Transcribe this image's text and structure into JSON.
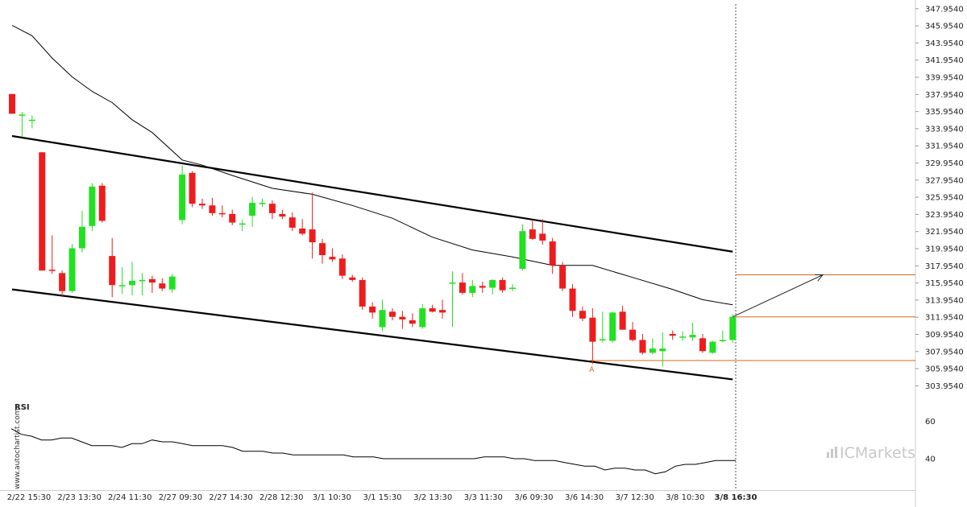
{
  "watermark": "www.autochartist.com",
  "brand_logo": "ICMarkets",
  "colors": {
    "bull": "#22e022",
    "bear": "#ee1c1c",
    "channel": "#000000",
    "moving_average": "#000000",
    "level": "#d2691e",
    "rsi": "#000000"
  },
  "chart_data": [
    {
      "type": "candlestick",
      "x_tick_labels": [
        "2/22 15:30",
        "2/23 13:30",
        "2/24 11:30",
        "2/27 09:30",
        "2/27 14:30",
        "2/28 12:30",
        "3/1 10:30",
        "3/1 15:30",
        "3/2 13:30",
        "3/3 11:30",
        "3/6 09:30",
        "3/6 14:30",
        "3/7 12:30",
        "3/8 10:30",
        "3/8 16:30"
      ],
      "y_tick_labels": [
        "303.9540",
        "305.9540",
        "307.9540",
        "309.9540",
        "311.9540",
        "313.9540",
        "315.9540",
        "317.9540",
        "319.9540",
        "321.9540",
        "323.9540",
        "325.9540",
        "327.9540",
        "329.9540",
        "331.9540",
        "333.9540",
        "335.9540",
        "337.9540",
        "339.9540",
        "341.9540",
        "343.9540",
        "345.9540",
        "347.9540"
      ],
      "ylim": [
        302.3,
        348.5
      ],
      "candles": [
        {
          "o": 338.0,
          "h": 338.0,
          "l": 335.7,
          "c": 335.7
        },
        {
          "o": 335.6,
          "h": 335.9,
          "l": 333.0,
          "c": 335.6
        },
        {
          "o": 335.0,
          "h": 335.5,
          "l": 334.0,
          "c": 335.0
        },
        {
          "o": 331.2,
          "h": 331.2,
          "l": 317.4,
          "c": 317.4
        },
        {
          "o": 317.5,
          "h": 321.5,
          "l": 317.0,
          "c": 317.4
        },
        {
          "o": 317.1,
          "h": 317.4,
          "l": 314.3,
          "c": 315.0
        },
        {
          "o": 315.0,
          "h": 320.5,
          "l": 314.8,
          "c": 320.0
        },
        {
          "o": 320.0,
          "h": 324.4,
          "l": 319.5,
          "c": 322.5
        },
        {
          "o": 322.6,
          "h": 327.6,
          "l": 322.0,
          "c": 327.2
        },
        {
          "o": 327.3,
          "h": 327.6,
          "l": 323.0,
          "c": 323.2
        },
        {
          "o": 319.1,
          "h": 321.2,
          "l": 314.3,
          "c": 315.7
        },
        {
          "o": 315.7,
          "h": 317.8,
          "l": 314.7,
          "c": 315.7
        },
        {
          "o": 315.7,
          "h": 318.4,
          "l": 314.5,
          "c": 316.2
        },
        {
          "o": 316.3,
          "h": 317.1,
          "l": 314.5,
          "c": 316.3
        },
        {
          "o": 316.4,
          "h": 316.8,
          "l": 314.8,
          "c": 316.0
        },
        {
          "o": 315.9,
          "h": 316.5,
          "l": 315.0,
          "c": 315.3
        },
        {
          "o": 315.2,
          "h": 317.0,
          "l": 314.8,
          "c": 316.7
        },
        {
          "o": 323.3,
          "h": 329.7,
          "l": 322.8,
          "c": 328.6
        },
        {
          "o": 328.8,
          "h": 329.0,
          "l": 324.8,
          "c": 325.2
        },
        {
          "o": 325.2,
          "h": 325.8,
          "l": 324.6,
          "c": 325.0
        },
        {
          "o": 325.0,
          "h": 325.9,
          "l": 323.8,
          "c": 324.1
        },
        {
          "o": 324.1,
          "h": 325.0,
          "l": 323.6,
          "c": 324.0
        },
        {
          "o": 324.0,
          "h": 324.5,
          "l": 322.7,
          "c": 323.0
        },
        {
          "o": 322.9,
          "h": 323.3,
          "l": 322.0,
          "c": 322.9
        },
        {
          "o": 323.8,
          "h": 326.0,
          "l": 322.5,
          "c": 325.3
        },
        {
          "o": 325.3,
          "h": 325.8,
          "l": 324.8,
          "c": 325.3
        },
        {
          "o": 325.2,
          "h": 325.6,
          "l": 323.4,
          "c": 324.1
        },
        {
          "o": 324.0,
          "h": 324.5,
          "l": 323.4,
          "c": 323.7
        },
        {
          "o": 323.6,
          "h": 324.2,
          "l": 322.0,
          "c": 322.4
        },
        {
          "o": 322.3,
          "h": 323.4,
          "l": 321.5,
          "c": 321.7
        },
        {
          "o": 322.2,
          "h": 326.5,
          "l": 318.8,
          "c": 320.7
        },
        {
          "o": 320.6,
          "h": 321.1,
          "l": 318.2,
          "c": 319.2
        },
        {
          "o": 319.0,
          "h": 320.0,
          "l": 318.4,
          "c": 318.7
        },
        {
          "o": 318.8,
          "h": 319.3,
          "l": 316.4,
          "c": 316.8
        },
        {
          "o": 316.6,
          "h": 316.9,
          "l": 316.1,
          "c": 316.3
        },
        {
          "o": 316.3,
          "h": 316.6,
          "l": 312.8,
          "c": 313.2
        },
        {
          "o": 313.2,
          "h": 313.7,
          "l": 311.8,
          "c": 312.5
        },
        {
          "o": 310.8,
          "h": 314.0,
          "l": 310.3,
          "c": 312.8
        },
        {
          "o": 312.6,
          "h": 313.0,
          "l": 311.6,
          "c": 312.0
        },
        {
          "o": 312.0,
          "h": 312.7,
          "l": 310.6,
          "c": 311.7
        },
        {
          "o": 311.6,
          "h": 312.4,
          "l": 310.8,
          "c": 311.2
        },
        {
          "o": 310.8,
          "h": 313.5,
          "l": 310.6,
          "c": 313.0
        },
        {
          "o": 313.0,
          "h": 313.4,
          "l": 312.5,
          "c": 312.6
        },
        {
          "o": 312.8,
          "h": 314.0,
          "l": 311.8,
          "c": 312.5
        },
        {
          "o": 315.9,
          "h": 317.3,
          "l": 310.8,
          "c": 316.0
        },
        {
          "o": 316.0,
          "h": 317.1,
          "l": 314.6,
          "c": 314.8
        },
        {
          "o": 314.8,
          "h": 316.3,
          "l": 314.3,
          "c": 315.6
        },
        {
          "o": 315.6,
          "h": 316.1,
          "l": 314.8,
          "c": 315.4
        },
        {
          "o": 315.4,
          "h": 316.4,
          "l": 314.6,
          "c": 316.3
        },
        {
          "o": 316.3,
          "h": 316.6,
          "l": 314.8,
          "c": 315.1
        },
        {
          "o": 315.4,
          "h": 315.8,
          "l": 315.0,
          "c": 315.4
        },
        {
          "o": 317.6,
          "h": 322.8,
          "l": 317.4,
          "c": 322.0
        },
        {
          "o": 322.2,
          "h": 323.3,
          "l": 321.0,
          "c": 321.1
        },
        {
          "o": 321.7,
          "h": 323.4,
          "l": 320.4,
          "c": 320.9
        },
        {
          "o": 320.8,
          "h": 321.2,
          "l": 317.0,
          "c": 318.0
        },
        {
          "o": 318.0,
          "h": 318.4,
          "l": 315.0,
          "c": 315.3
        },
        {
          "o": 315.3,
          "h": 315.8,
          "l": 312.0,
          "c": 312.7
        },
        {
          "o": 312.7,
          "h": 313.2,
          "l": 311.5,
          "c": 311.8
        },
        {
          "o": 311.9,
          "h": 313.0,
          "l": 306.5,
          "c": 309.1
        },
        {
          "o": 309.3,
          "h": 312.6,
          "l": 309.0,
          "c": 309.4
        },
        {
          "o": 309.2,
          "h": 312.6,
          "l": 309.0,
          "c": 312.5
        },
        {
          "o": 312.6,
          "h": 313.3,
          "l": 310.7,
          "c": 310.5
        },
        {
          "o": 310.5,
          "h": 311.4,
          "l": 309.1,
          "c": 309.3
        },
        {
          "o": 309.3,
          "h": 310.0,
          "l": 307.6,
          "c": 307.8
        },
        {
          "o": 307.8,
          "h": 309.5,
          "l": 307.6,
          "c": 308.3
        },
        {
          "o": 308.0,
          "h": 310.2,
          "l": 306.2,
          "c": 308.3
        },
        {
          "o": 310.0,
          "h": 310.4,
          "l": 309.3,
          "c": 309.8
        },
        {
          "o": 309.7,
          "h": 310.3,
          "l": 309.2,
          "c": 309.7
        },
        {
          "o": 309.6,
          "h": 311.3,
          "l": 309.2,
          "c": 309.9
        },
        {
          "o": 309.5,
          "h": 310.0,
          "l": 307.8,
          "c": 308.0
        },
        {
          "o": 307.8,
          "h": 309.2,
          "l": 307.7,
          "c": 309.1
        },
        {
          "o": 309.2,
          "h": 310.4,
          "l": 309.0,
          "c": 309.3
        },
        {
          "o": 309.3,
          "h": 312.3,
          "l": 309.0,
          "c": 312.0
        }
      ],
      "moving_average": [
        {
          "i": 0,
          "v": 346.0
        },
        {
          "i": 2,
          "v": 344.8
        },
        {
          "i": 4,
          "v": 342.2
        },
        {
          "i": 6,
          "v": 340.0
        },
        {
          "i": 8,
          "v": 338.3
        },
        {
          "i": 10,
          "v": 337.0
        },
        {
          "i": 12,
          "v": 335.0
        },
        {
          "i": 14,
          "v": 333.5
        },
        {
          "i": 17,
          "v": 330.3
        },
        {
          "i": 19,
          "v": 329.7
        },
        {
          "i": 22,
          "v": 328.5
        },
        {
          "i": 26,
          "v": 327.0
        },
        {
          "i": 30,
          "v": 326.3
        },
        {
          "i": 34,
          "v": 325.0
        },
        {
          "i": 38,
          "v": 323.5
        },
        {
          "i": 42,
          "v": 321.3
        },
        {
          "i": 46,
          "v": 319.8
        },
        {
          "i": 50,
          "v": 319.0
        },
        {
          "i": 54,
          "v": 318.0
        },
        {
          "i": 58,
          "v": 318.0
        },
        {
          "i": 62,
          "v": 316.6
        },
        {
          "i": 66,
          "v": 315.2
        },
        {
          "i": 69,
          "v": 314.0
        },
        {
          "i": 72,
          "v": 313.4
        }
      ],
      "channel_upper": [
        {
          "i": 0,
          "v": 333.1
        },
        {
          "i": 72,
          "v": 319.6
        }
      ],
      "channel_lower": [
        {
          "i": 0,
          "v": 315.2
        },
        {
          "i": 72,
          "v": 304.7
        }
      ],
      "support_level": {
        "value": 306.9,
        "from_index": 58,
        "label": "A"
      },
      "current_level": 312.0,
      "target_level": 316.9,
      "projection": {
        "from": {
          "i": 72,
          "v": 312.0
        },
        "to": {
          "i": 81,
          "v": 316.9
        }
      }
    },
    {
      "type": "line",
      "title": "RSI",
      "y_tick_labels": [
        "40",
        "60"
      ],
      "ylim": [
        25,
        70
      ],
      "values": [
        56,
        53,
        52,
        50,
        50,
        51,
        51,
        49,
        47,
        47,
        47,
        46,
        48,
        48,
        50,
        49,
        49,
        48,
        47,
        47,
        47,
        47,
        46,
        44,
        44,
        44,
        43,
        43,
        42,
        42,
        42,
        42,
        42,
        42,
        41,
        41,
        41,
        40,
        40,
        40,
        40,
        40,
        40,
        40,
        40,
        40,
        40,
        41,
        41,
        41,
        40,
        40,
        39,
        39,
        39,
        38,
        37,
        36,
        36,
        34,
        35,
        35,
        34,
        34,
        32,
        33,
        36,
        37,
        37,
        38,
        39,
        39,
        39
      ]
    }
  ]
}
